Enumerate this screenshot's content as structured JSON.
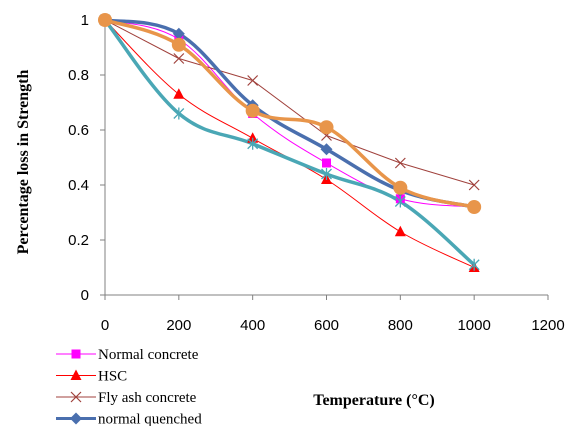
{
  "chart_data": {
    "type": "line",
    "title": "",
    "xlabel": "Temperature (°C)",
    "ylabel": "Percentage loss in Strength",
    "xlim": [
      0,
      1200
    ],
    "ylim": [
      0,
      1
    ],
    "x_ticks": [
      "0",
      "200",
      "400",
      "600",
      "800",
      "1000",
      "1200"
    ],
    "y_ticks": [
      "0",
      "0.2",
      "0.4",
      "0.6",
      "0.8",
      "1"
    ],
    "grid": false,
    "legend_position": "bottom-left",
    "series": [
      {
        "name": "Normal concrete",
        "color": "#ff00ff",
        "marker": "square",
        "smooth": true,
        "line_width": 1,
        "points": [
          [
            0,
            1
          ],
          [
            200,
            0.93
          ],
          [
            400,
            0.66
          ],
          [
            600,
            0.48
          ],
          [
            800,
            0.35
          ],
          [
            1000,
            0.32
          ]
        ]
      },
      {
        "name": "HSC",
        "color": "#ff0000",
        "marker": "triangle",
        "smooth": true,
        "line_width": 1,
        "points": [
          [
            0,
            1
          ],
          [
            200,
            0.73
          ],
          [
            400,
            0.57
          ],
          [
            600,
            0.42
          ],
          [
            800,
            0.23
          ],
          [
            1000,
            0.1
          ]
        ]
      },
      {
        "name": "Fly ash concrete",
        "color": "#a0413c",
        "marker": "x",
        "smooth": false,
        "line_width": 1,
        "points": [
          [
            0,
            1
          ],
          [
            200,
            0.86
          ],
          [
            400,
            0.78
          ],
          [
            600,
            0.58
          ],
          [
            800,
            0.48
          ],
          [
            1000,
            0.4
          ]
        ]
      },
      {
        "name": "normal quenched",
        "color": "#4a6fae",
        "marker": "diamond",
        "smooth": true,
        "line_width": 3.5,
        "points": [
          [
            0,
            1
          ],
          [
            200,
            0.95
          ],
          [
            400,
            0.69
          ],
          [
            600,
            0.53
          ],
          [
            800,
            0.38
          ],
          [
            1000,
            0.32
          ]
        ]
      },
      {
        "name": "",
        "color": "#4aa7b5",
        "marker": "star",
        "smooth": true,
        "line_width": 3.5,
        "points": [
          [
            0,
            1
          ],
          [
            200,
            0.66
          ],
          [
            400,
            0.55
          ],
          [
            600,
            0.44
          ],
          [
            800,
            0.34
          ],
          [
            1000,
            0.11
          ]
        ]
      },
      {
        "name": "",
        "color": "#e8954a",
        "marker": "circle",
        "smooth": true,
        "line_width": 3.5,
        "points": [
          [
            0,
            1
          ],
          [
            200,
            0.91
          ],
          [
            400,
            0.67
          ],
          [
            600,
            0.61
          ],
          [
            800,
            0.39
          ],
          [
            1000,
            0.32
          ]
        ]
      }
    ]
  }
}
